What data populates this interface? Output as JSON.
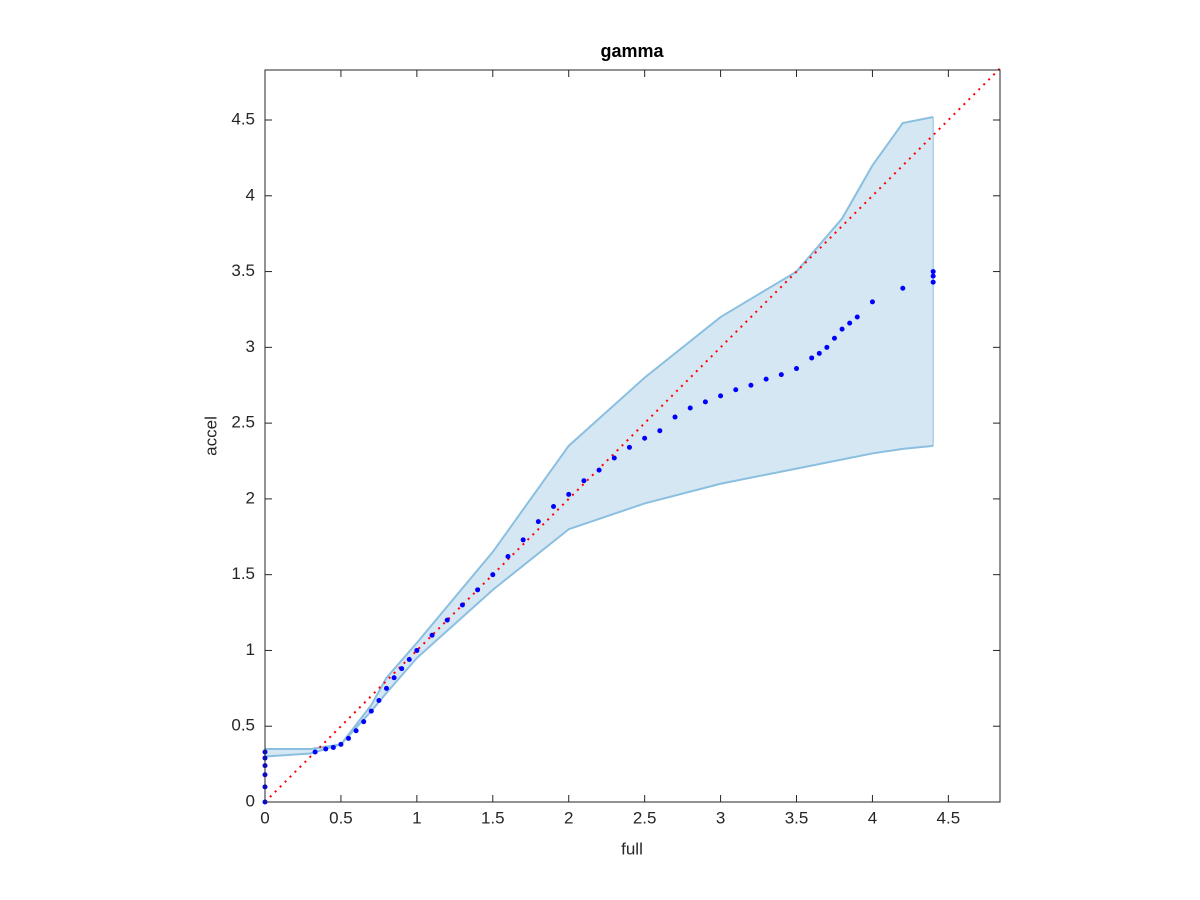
{
  "chart_data": {
    "type": "scatter",
    "title": "gamma",
    "x_label": "full",
    "y_label": "accel",
    "xlim": [
      0,
      4.84
    ],
    "ylim": [
      0,
      4.83
    ],
    "xticks": [
      0,
      0.5,
      1,
      1.5,
      2,
      2.5,
      3,
      3.5,
      4,
      4.5
    ],
    "yticks": [
      0,
      0.5,
      1,
      1.5,
      2,
      2.5,
      3,
      3.5,
      4,
      4.5
    ],
    "band": {
      "color": "#8bbfe0",
      "fill": "#d6e7f4",
      "x": [
        0,
        0.3,
        0.5,
        0.7,
        0.8,
        1.0,
        1.5,
        2.0,
        2.5,
        3.0,
        3.5,
        3.8,
        4.0,
        4.2,
        4.4
      ],
      "upper": [
        0.35,
        0.35,
        0.38,
        0.64,
        0.82,
        1.05,
        1.65,
        2.35,
        2.8,
        3.2,
        3.5,
        3.85,
        4.2,
        4.48,
        4.52
      ],
      "lower": [
        0.3,
        0.32,
        0.38,
        0.6,
        0.72,
        0.95,
        1.4,
        1.8,
        1.97,
        2.1,
        2.2,
        2.26,
        2.3,
        2.33,
        2.35
      ]
    },
    "reference": {
      "color": "#ff0000",
      "x": [
        0,
        4.84
      ],
      "values": [
        0,
        4.84
      ]
    },
    "series": [
      {
        "color": "#0000ff",
        "x": [
          0,
          0,
          0,
          0,
          0,
          0,
          0.33,
          0.4,
          0.45,
          0.5,
          0.55,
          0.6,
          0.65,
          0.7,
          0.75,
          0.8,
          0.85,
          0.9,
          0.95,
          1.0,
          1.1,
          1.2,
          1.3,
          1.4,
          1.5,
          1.6,
          1.7,
          1.8,
          1.9,
          2.0,
          2.1,
          2.2,
          2.3,
          2.4,
          2.5,
          2.6,
          2.7,
          2.8,
          2.9,
          3.0,
          3.1,
          3.2,
          3.3,
          3.4,
          3.5,
          3.6,
          3.65,
          3.7,
          3.75,
          3.8,
          3.85,
          3.9,
          4.0,
          4.2,
          4.4,
          4.4,
          4.4
        ],
        "values": [
          0,
          0.1,
          0.18,
          0.24,
          0.29,
          0.33,
          0.33,
          0.35,
          0.36,
          0.38,
          0.42,
          0.47,
          0.53,
          0.6,
          0.67,
          0.75,
          0.82,
          0.88,
          0.94,
          1.0,
          1.1,
          1.2,
          1.3,
          1.4,
          1.5,
          1.62,
          1.73,
          1.85,
          1.95,
          2.03,
          2.12,
          2.19,
          2.27,
          2.34,
          2.4,
          2.45,
          2.54,
          2.6,
          2.64,
          2.68,
          2.72,
          2.75,
          2.79,
          2.82,
          2.86,
          2.93,
          2.96,
          3.0,
          3.06,
          3.12,
          3.16,
          3.2,
          3.3,
          3.39,
          3.43,
          3.47,
          3.5
        ]
      }
    ]
  }
}
